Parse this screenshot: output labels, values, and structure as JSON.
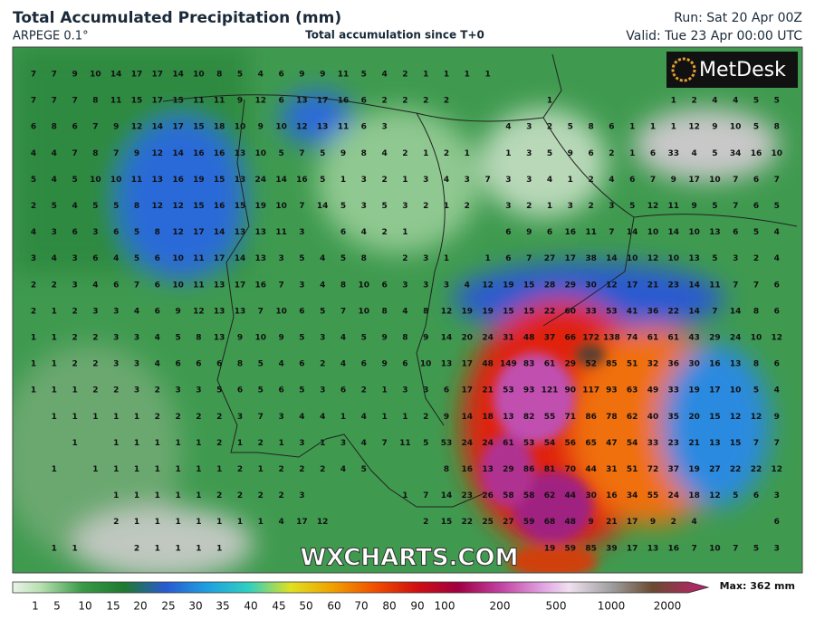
{
  "header": {
    "title": "Total Accumulated Precipitation (mm)",
    "model": "ARPEGE 0.1°",
    "subtitle": "Total accumulation since T+0",
    "run": "Run: Sat 20 Apr 00Z",
    "valid": "Valid: Tue 23 Apr 00:00 UTC"
  },
  "logo": "MetDesk",
  "watermark": "WXCHARTS.COM",
  "colorbar": {
    "labels": [
      1,
      5,
      10,
      15,
      20,
      25,
      30,
      35,
      40,
      45,
      50,
      60,
      70,
      80,
      90,
      100,
      200,
      500,
      1000,
      2000
    ],
    "max_label": "Max: 362 mm"
  },
  "grid_values": [
    [
      7,
      7,
      9,
      10,
      14,
      17,
      17,
      14,
      10,
      8,
      5,
      4,
      6,
      9,
      9,
      11,
      5,
      4,
      2,
      1,
      1,
      1,
      1,
      null,
      null,
      null,
      null,
      null,
      null,
      null,
      null,
      null,
      null,
      null,
      null,
      null,
      null
    ],
    [
      7,
      7,
      7,
      8,
      11,
      15,
      17,
      15,
      11,
      11,
      9,
      12,
      6,
      13,
      17,
      16,
      6,
      2,
      2,
      2,
      2,
      null,
      null,
      null,
      null,
      1,
      null,
      null,
      null,
      null,
      null,
      1,
      2,
      4,
      4,
      5,
      5
    ],
    [
      6,
      8,
      6,
      7,
      9,
      12,
      14,
      17,
      15,
      18,
      10,
      9,
      10,
      12,
      13,
      11,
      6,
      3,
      null,
      null,
      null,
      null,
      null,
      4,
      3,
      2,
      5,
      8,
      6,
      1,
      1,
      1,
      12,
      9,
      10,
      5,
      8
    ],
    [
      4,
      4,
      7,
      8,
      7,
      9,
      12,
      14,
      16,
      16,
      13,
      10,
      5,
      7,
      5,
      9,
      8,
      4,
      2,
      1,
      2,
      1,
      null,
      1,
      3,
      5,
      9,
      6,
      2,
      1,
      6,
      33,
      4,
      5,
      34,
      16,
      10
    ],
    [
      5,
      4,
      5,
      10,
      10,
      11,
      13,
      16,
      19,
      15,
      13,
      24,
      14,
      16,
      5,
      1,
      3,
      2,
      1,
      3,
      4,
      3,
      7,
      3,
      3,
      4,
      1,
      2,
      4,
      6,
      7,
      9,
      17,
      10,
      7,
      6,
      7
    ],
    [
      2,
      5,
      4,
      5,
      5,
      8,
      12,
      12,
      15,
      16,
      15,
      19,
      10,
      7,
      14,
      5,
      3,
      5,
      3,
      2,
      1,
      2,
      null,
      3,
      2,
      1,
      3,
      2,
      3,
      5,
      12,
      11,
      9,
      5,
      7,
      6,
      5
    ],
    [
      4,
      3,
      6,
      3,
      6,
      5,
      8,
      12,
      17,
      14,
      13,
      13,
      11,
      3,
      null,
      6,
      4,
      2,
      1,
      null,
      null,
      null,
      null,
      6,
      9,
      6,
      16,
      11,
      7,
      14,
      10,
      14,
      10,
      13,
      6,
      5,
      4
    ],
    [
      3,
      4,
      3,
      6,
      4,
      5,
      6,
      10,
      11,
      17,
      14,
      13,
      3,
      5,
      4,
      5,
      8,
      null,
      2,
      3,
      1,
      null,
      1,
      6,
      7,
      27,
      17,
      38,
      14,
      10,
      12,
      10,
      13,
      5,
      3,
      2,
      4
    ],
    [
      2,
      2,
      3,
      4,
      6,
      7,
      6,
      10,
      11,
      13,
      17,
      16,
      7,
      3,
      4,
      8,
      10,
      6,
      3,
      3,
      3,
      4,
      12,
      19,
      15,
      28,
      29,
      30,
      12,
      17,
      21,
      23,
      14,
      11,
      7,
      7,
      6
    ],
    [
      2,
      1,
      2,
      3,
      3,
      4,
      6,
      9,
      12,
      13,
      13,
      7,
      10,
      6,
      5,
      7,
      10,
      8,
      4,
      8,
      12,
      19,
      19,
      15,
      15,
      22,
      60,
      33,
      53,
      41,
      36,
      22,
      14,
      7,
      14,
      8,
      6
    ],
    [
      1,
      1,
      2,
      2,
      3,
      3,
      4,
      5,
      8,
      13,
      9,
      10,
      9,
      5,
      3,
      4,
      5,
      9,
      8,
      9,
      14,
      20,
      24,
      31,
      48,
      37,
      66,
      172,
      138,
      74,
      61,
      61,
      43,
      29,
      24,
      10,
      12
    ],
    [
      1,
      1,
      2,
      2,
      3,
      3,
      4,
      6,
      6,
      6,
      8,
      5,
      4,
      6,
      2,
      4,
      6,
      9,
      6,
      10,
      13,
      17,
      48,
      149,
      83,
      61,
      29,
      52,
      85,
      51,
      32,
      36,
      30,
      16,
      13,
      8,
      6
    ],
    [
      1,
      1,
      1,
      2,
      2,
      3,
      2,
      3,
      3,
      5,
      6,
      5,
      6,
      5,
      3,
      6,
      2,
      1,
      3,
      3,
      6,
      17,
      21,
      53,
      93,
      121,
      90,
      117,
      93,
      63,
      49,
      33,
      19,
      17,
      10,
      5,
      4
    ],
    [
      null,
      1,
      1,
      1,
      1,
      1,
      2,
      2,
      2,
      2,
      3,
      7,
      3,
      4,
      4,
      1,
      4,
      1,
      1,
      2,
      9,
      14,
      18,
      13,
      82,
      55,
      71,
      86,
      78,
      62,
      40,
      35,
      20,
      15,
      12,
      12,
      9
    ],
    [
      null,
      null,
      1,
      null,
      1,
      1,
      1,
      1,
      1,
      2,
      1,
      2,
      1,
      3,
      1,
      3,
      4,
      7,
      11,
      5,
      53,
      24,
      24,
      61,
      53,
      54,
      56,
      65,
      47,
      54,
      33,
      23,
      21,
      13,
      15,
      7,
      7
    ],
    [
      null,
      1,
      null,
      1,
      1,
      1,
      1,
      1,
      1,
      1,
      2,
      1,
      2,
      2,
      2,
      4,
      5,
      null,
      null,
      null,
      8,
      16,
      13,
      29,
      86,
      81,
      70,
      44,
      31,
      51,
      72,
      37,
      19,
      27,
      22,
      22,
      12
    ],
    [
      null,
      null,
      null,
      null,
      1,
      1,
      1,
      1,
      1,
      2,
      2,
      2,
      2,
      3,
      null,
      null,
      null,
      null,
      1,
      7,
      14,
      23,
      26,
      58,
      58,
      62,
      44,
      30,
      16,
      34,
      55,
      24,
      18,
      12,
      5,
      6,
      3
    ],
    [
      null,
      null,
      null,
      null,
      2,
      1,
      1,
      1,
      1,
      1,
      1,
      1,
      4,
      17,
      12,
      null,
      null,
      null,
      null,
      2,
      15,
      22,
      25,
      27,
      59,
      68,
      48,
      9,
      21,
      17,
      9,
      2,
      4,
      null,
      null,
      null,
      6
    ],
    [
      null,
      1,
      1,
      null,
      null,
      2,
      1,
      1,
      1,
      1,
      null,
      null,
      null,
      null,
      null,
      null,
      null,
      null,
      null,
      null,
      null,
      null,
      null,
      null,
      null,
      19,
      59,
      85,
      39,
      17,
      13,
      16,
      7,
      10,
      7,
      5,
      3
    ]
  ]
}
